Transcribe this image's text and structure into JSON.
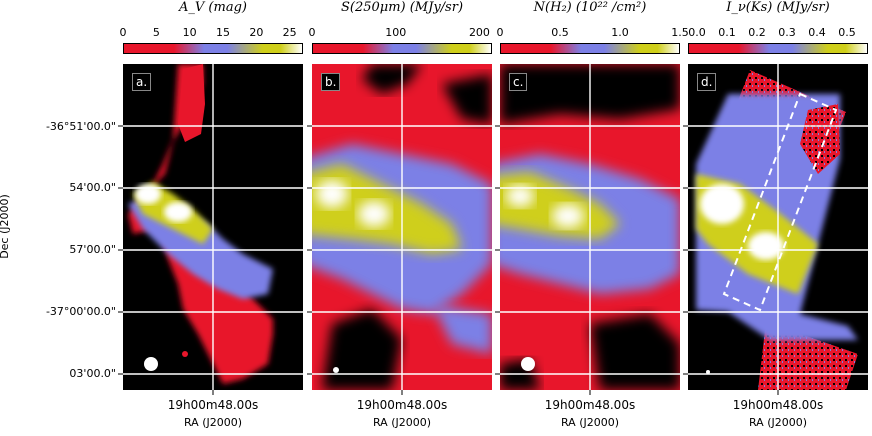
{
  "panels": [
    {
      "id": "a",
      "label": "a.",
      "colorbar_title": "A_V (mag)",
      "ticks": [
        "0",
        "5",
        "10",
        "15",
        "20",
        "25"
      ],
      "tick_values": [
        0,
        5,
        10,
        15,
        20,
        25
      ],
      "range": [
        0,
        27
      ]
    },
    {
      "id": "b",
      "label": "b.",
      "colorbar_title": "S(250μm) (MJy/sr)",
      "ticks": [
        "0",
        "100",
        "200"
      ],
      "tick_values": [
        0,
        100,
        200
      ],
      "range": [
        0,
        215
      ]
    },
    {
      "id": "c",
      "label": "c.",
      "colorbar_title": "N(H₂) (10²² /cm²)",
      "ticks": [
        "0",
        "0.5",
        "1.0",
        "1.5"
      ],
      "tick_values": [
        0,
        0.5,
        1.0,
        1.5
      ],
      "range": [
        0,
        1.5
      ]
    },
    {
      "id": "d",
      "label": "d.",
      "colorbar_title": "I_ν(Ks) (MJy/sr)",
      "ticks": [
        "0.0",
        "0.1",
        "0.2",
        "0.3",
        "0.4",
        "0.5"
      ],
      "tick_values": [
        0,
        0.1,
        0.2,
        0.3,
        0.4,
        0.5
      ],
      "range": [
        -0.03,
        0.57
      ]
    }
  ],
  "y_axis": {
    "label": "Dec (J2000)",
    "ticks": [
      "-36°51'00.0\"",
      "54'00.0\"",
      "57'00.0\"",
      "-37°00'00.0\"",
      "03'00.0\""
    ]
  },
  "x_axis": {
    "tick": "19h00m48.00s",
    "label": "RA (J2000)"
  },
  "colors": {
    "red": "#e8162b",
    "blue": "#7c80e6",
    "yellow": "#cfcf1a",
    "white": "#ffffff",
    "black": "#000000"
  }
}
